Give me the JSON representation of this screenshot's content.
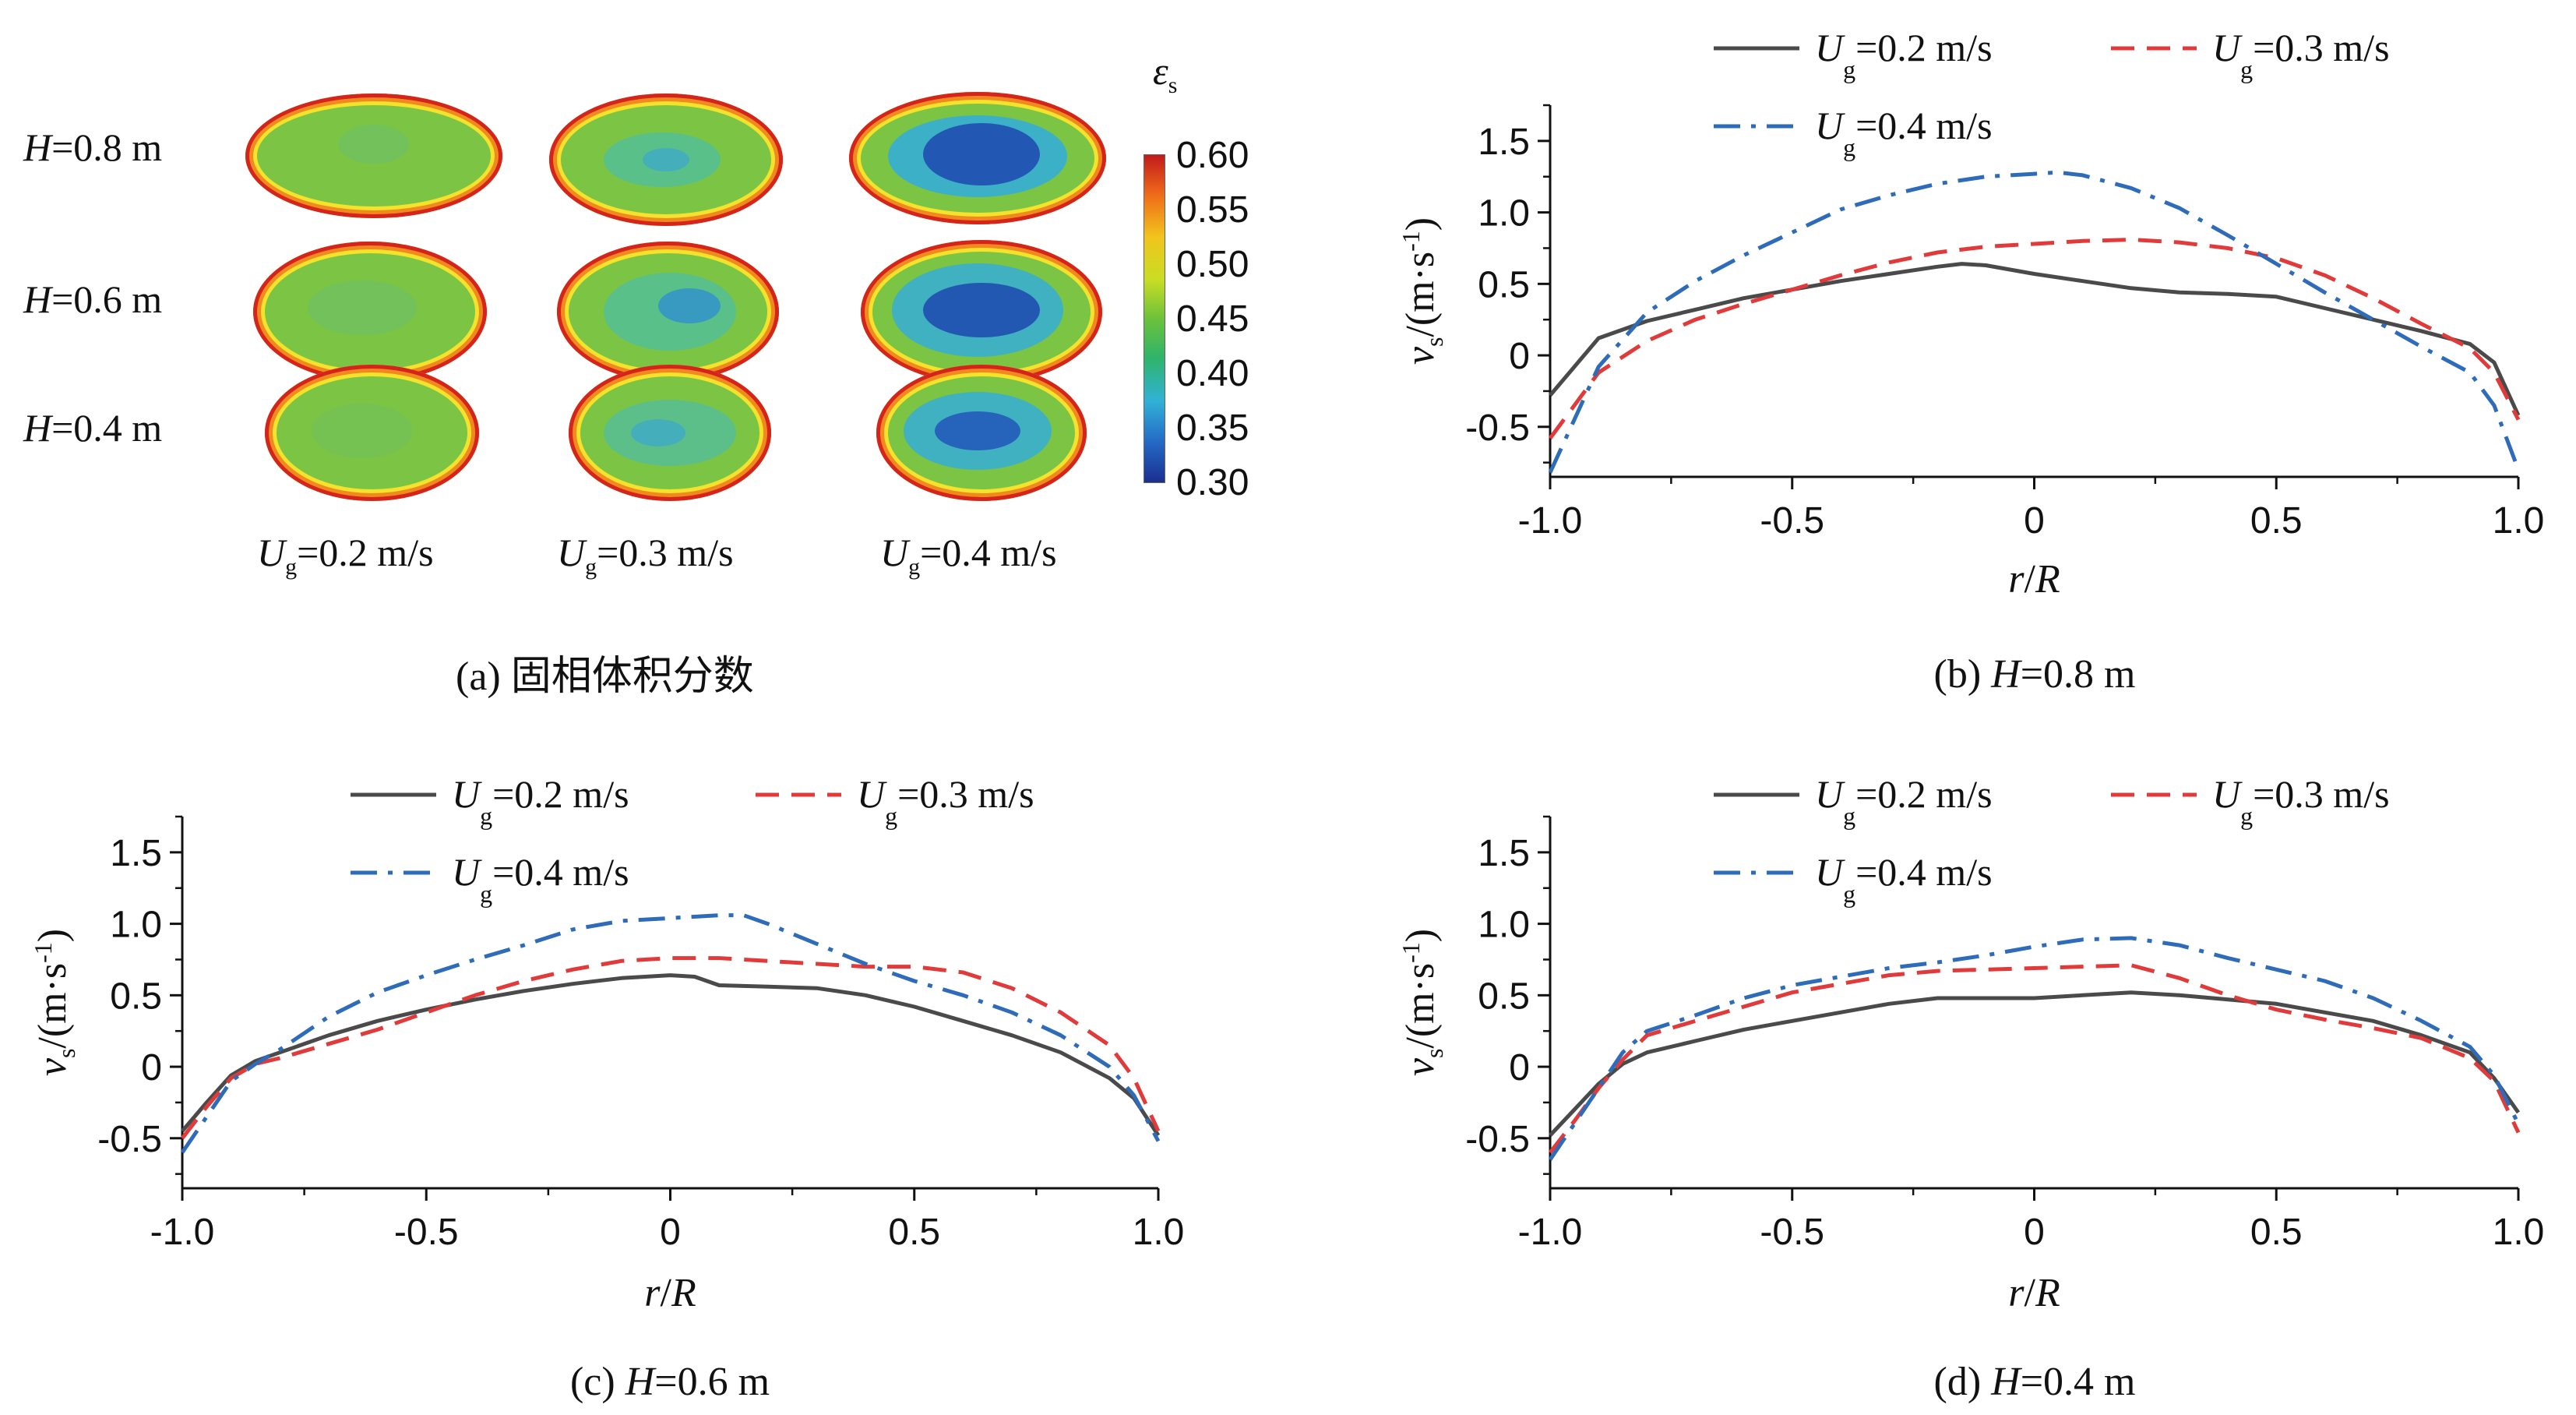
{
  "panel_a": {
    "caption": "(a) 固相体积分数",
    "colorbar_title": "ε",
    "colorbar_sub": "s",
    "colorbar_ticks": [
      "0.60",
      "0.55",
      "0.50",
      "0.45",
      "0.40",
      "0.35",
      "0.30"
    ],
    "row_labels": [
      {
        "var": "H",
        "rest": "=0.8 m"
      },
      {
        "var": "H",
        "rest": "=0.6 m"
      },
      {
        "var": "H",
        "rest": "=0.4 m"
      }
    ],
    "col_labels": [
      {
        "var": "U",
        "sub": "g",
        "rest": "=0.2 m/s"
      },
      {
        "var": "U",
        "sub": "g",
        "rest": "=0.3 m/s"
      },
      {
        "var": "U",
        "sub": "g",
        "rest": "=0.4 m/s"
      }
    ],
    "colors": {
      "bulk": "#7cc443",
      "wall": "#d4241c",
      "low": "#1f4fb0"
    }
  },
  "chart_data": [
    {
      "type": "line",
      "caption_prefix": "(b) ",
      "caption_var": "H",
      "caption_rest": "=0.8 m",
      "xlabel": "r/R",
      "ylabel": "v_s/(m·s^-1)",
      "xlim": [
        -1.0,
        1.0
      ],
      "ylim": [
        -0.85,
        1.75
      ],
      "xticks": [
        "-1.0",
        "-0.5",
        "0",
        "0.5",
        "1.0"
      ],
      "yticks": [
        "-0.5",
        "0",
        "0.5",
        "1.0",
        "1.5"
      ],
      "legend_position": "top",
      "series": [
        {
          "name": "Ug=0.2 m/s",
          "label_var": "U",
          "label_sub": "g",
          "label_rest": "=0.2 m/s",
          "color": "#4a4a4a",
          "dash": "solid",
          "x": [
            -1.0,
            -0.95,
            -0.9,
            -0.8,
            -0.7,
            -0.6,
            -0.5,
            -0.4,
            -0.3,
            -0.2,
            -0.15,
            -0.1,
            0.0,
            0.1,
            0.2,
            0.3,
            0.4,
            0.5,
            0.6,
            0.7,
            0.8,
            0.9,
            0.95,
            1.0
          ],
          "y": [
            -0.28,
            -0.08,
            0.12,
            0.24,
            0.32,
            0.4,
            0.46,
            0.52,
            0.57,
            0.62,
            0.64,
            0.63,
            0.57,
            0.52,
            0.47,
            0.44,
            0.43,
            0.41,
            0.33,
            0.25,
            0.17,
            0.08,
            -0.05,
            -0.42
          ]
        },
        {
          "name": "Ug=0.3 m/s",
          "label_var": "U",
          "label_sub": "g",
          "label_rest": "=0.3 m/s",
          "color": "#e03a3a",
          "dash": "dashed",
          "x": [
            -1.0,
            -0.95,
            -0.9,
            -0.8,
            -0.7,
            -0.6,
            -0.5,
            -0.4,
            -0.3,
            -0.2,
            -0.1,
            0.0,
            0.1,
            0.2,
            0.3,
            0.4,
            0.5,
            0.6,
            0.7,
            0.8,
            0.9,
            0.95,
            1.0
          ],
          "y": [
            -0.58,
            -0.35,
            -0.12,
            0.1,
            0.25,
            0.36,
            0.46,
            0.56,
            0.65,
            0.72,
            0.76,
            0.78,
            0.8,
            0.81,
            0.79,
            0.75,
            0.68,
            0.56,
            0.4,
            0.22,
            0.05,
            -0.12,
            -0.45
          ]
        },
        {
          "name": "Ug=0.4 m/s",
          "label_var": "U",
          "label_sub": "g",
          "label_rest": "=0.4 m/s",
          "color": "#2e6bb8",
          "dash": "dashdot",
          "x": [
            -1.0,
            -0.95,
            -0.9,
            -0.8,
            -0.7,
            -0.6,
            -0.5,
            -0.4,
            -0.3,
            -0.2,
            -0.1,
            0.0,
            0.05,
            0.1,
            0.2,
            0.3,
            0.4,
            0.5,
            0.6,
            0.7,
            0.8,
            0.9,
            0.95,
            1.0
          ],
          "y": [
            -0.82,
            -0.45,
            -0.08,
            0.3,
            0.52,
            0.7,
            0.86,
            1.02,
            1.12,
            1.2,
            1.25,
            1.27,
            1.28,
            1.26,
            1.17,
            1.03,
            0.84,
            0.64,
            0.44,
            0.25,
            0.06,
            -0.12,
            -0.35,
            -0.8
          ]
        }
      ]
    },
    {
      "type": "line",
      "caption_prefix": "(c) ",
      "caption_var": "H",
      "caption_rest": "=0.6 m",
      "xlabel": "r/R",
      "ylabel": "v_s/(m·s^-1)",
      "xlim": [
        -1.0,
        1.0
      ],
      "ylim": [
        -0.85,
        1.75
      ],
      "xticks": [
        "-1.0",
        "-0.5",
        "0",
        "0.5",
        "1.0"
      ],
      "yticks": [
        "-0.5",
        "0",
        "0.5",
        "1.0",
        "1.5"
      ],
      "legend_position": "top",
      "series": [
        {
          "name": "Ug=0.2 m/s",
          "label_var": "U",
          "label_sub": "g",
          "label_rest": "=0.2 m/s",
          "color": "#4a4a4a",
          "dash": "solid",
          "x": [
            -1.0,
            -0.95,
            -0.9,
            -0.85,
            -0.8,
            -0.7,
            -0.6,
            -0.5,
            -0.4,
            -0.3,
            -0.2,
            -0.1,
            0.0,
            0.05,
            0.1,
            0.2,
            0.3,
            0.4,
            0.5,
            0.6,
            0.7,
            0.8,
            0.9,
            0.95,
            1.0
          ],
          "y": [
            -0.45,
            -0.25,
            -0.06,
            0.04,
            0.1,
            0.22,
            0.32,
            0.4,
            0.47,
            0.53,
            0.58,
            0.62,
            0.64,
            0.63,
            0.57,
            0.56,
            0.55,
            0.5,
            0.42,
            0.32,
            0.22,
            0.1,
            -0.08,
            -0.22,
            -0.48
          ]
        },
        {
          "name": "Ug=0.3 m/s",
          "label_var": "U",
          "label_sub": "g",
          "label_rest": "=0.3 m/s",
          "color": "#e03a3a",
          "dash": "dashed",
          "x": [
            -1.0,
            -0.95,
            -0.9,
            -0.85,
            -0.8,
            -0.7,
            -0.6,
            -0.5,
            -0.4,
            -0.3,
            -0.2,
            -0.1,
            0.0,
            0.1,
            0.2,
            0.3,
            0.4,
            0.5,
            0.6,
            0.7,
            0.8,
            0.9,
            0.95,
            1.0
          ],
          "y": [
            -0.5,
            -0.28,
            -0.08,
            0.02,
            0.06,
            0.16,
            0.26,
            0.38,
            0.5,
            0.6,
            0.68,
            0.74,
            0.76,
            0.76,
            0.74,
            0.72,
            0.7,
            0.7,
            0.66,
            0.55,
            0.38,
            0.15,
            -0.08,
            -0.45
          ]
        },
        {
          "name": "Ug=0.4 m/s",
          "label_var": "U",
          "label_sub": "g",
          "label_rest": "=0.4 m/s",
          "color": "#2e6bb8",
          "dash": "dashdot",
          "x": [
            -1.0,
            -0.95,
            -0.9,
            -0.85,
            -0.8,
            -0.7,
            -0.6,
            -0.5,
            -0.4,
            -0.3,
            -0.2,
            -0.1,
            0.0,
            0.1,
            0.15,
            0.2,
            0.3,
            0.4,
            0.5,
            0.6,
            0.7,
            0.8,
            0.9,
            0.95,
            1.0
          ],
          "y": [
            -0.6,
            -0.35,
            -0.1,
            0.02,
            0.12,
            0.35,
            0.52,
            0.64,
            0.75,
            0.85,
            0.96,
            1.02,
            1.04,
            1.06,
            1.06,
            1.0,
            0.86,
            0.72,
            0.6,
            0.5,
            0.38,
            0.22,
            0.0,
            -0.2,
            -0.52
          ]
        }
      ]
    },
    {
      "type": "line",
      "caption_prefix": "(d) ",
      "caption_var": "H",
      "caption_rest": "=0.4 m",
      "xlabel": "r/R",
      "ylabel": "v_s/(m·s^-1)",
      "xlim": [
        -1.0,
        1.0
      ],
      "ylim": [
        -0.85,
        1.75
      ],
      "xticks": [
        "-1.0",
        "-0.5",
        "0",
        "0.5",
        "1.0"
      ],
      "yticks": [
        "-0.5",
        "0",
        "0.5",
        "1.0",
        "1.5"
      ],
      "legend_position": "top",
      "series": [
        {
          "name": "Ug=0.2 m/s",
          "label_var": "U",
          "label_sub": "g",
          "label_rest": "=0.2 m/s",
          "color": "#4a4a4a",
          "dash": "solid",
          "x": [
            -1.0,
            -0.95,
            -0.9,
            -0.85,
            -0.8,
            -0.7,
            -0.6,
            -0.5,
            -0.4,
            -0.3,
            -0.2,
            -0.1,
            0.0,
            0.1,
            0.2,
            0.3,
            0.4,
            0.5,
            0.6,
            0.7,
            0.8,
            0.9,
            0.95,
            1.0
          ],
          "y": [
            -0.48,
            -0.3,
            -0.12,
            0.02,
            0.1,
            0.18,
            0.26,
            0.32,
            0.38,
            0.44,
            0.48,
            0.48,
            0.48,
            0.5,
            0.52,
            0.5,
            0.47,
            0.44,
            0.38,
            0.32,
            0.22,
            0.1,
            -0.08,
            -0.32
          ]
        },
        {
          "name": "Ug=0.3 m/s",
          "label_var": "U",
          "label_sub": "g",
          "label_rest": "=0.3 m/s",
          "color": "#e03a3a",
          "dash": "dashed",
          "x": [
            -1.0,
            -0.95,
            -0.9,
            -0.85,
            -0.8,
            -0.7,
            -0.6,
            -0.5,
            -0.4,
            -0.3,
            -0.2,
            -0.1,
            0.0,
            0.1,
            0.2,
            0.3,
            0.4,
            0.5,
            0.6,
            0.7,
            0.8,
            0.9,
            0.95,
            1.0
          ],
          "y": [
            -0.6,
            -0.38,
            -0.15,
            0.05,
            0.22,
            0.32,
            0.42,
            0.52,
            0.58,
            0.64,
            0.67,
            0.68,
            0.69,
            0.7,
            0.71,
            0.62,
            0.5,
            0.4,
            0.33,
            0.27,
            0.2,
            0.06,
            -0.1,
            -0.46
          ]
        },
        {
          "name": "Ug=0.4 m/s",
          "label_var": "U",
          "label_sub": "g",
          "label_rest": "=0.4 m/s",
          "color": "#2e6bb8",
          "dash": "dashdot",
          "x": [
            -1.0,
            -0.95,
            -0.9,
            -0.85,
            -0.8,
            -0.7,
            -0.6,
            -0.5,
            -0.4,
            -0.3,
            -0.2,
            -0.1,
            0.0,
            0.1,
            0.2,
            0.3,
            0.4,
            0.5,
            0.6,
            0.7,
            0.8,
            0.9,
            0.95,
            1.0
          ],
          "y": [
            -0.65,
            -0.4,
            -0.15,
            0.1,
            0.25,
            0.36,
            0.48,
            0.57,
            0.63,
            0.69,
            0.73,
            0.78,
            0.84,
            0.89,
            0.9,
            0.85,
            0.76,
            0.68,
            0.6,
            0.48,
            0.32,
            0.14,
            -0.06,
            -0.4
          ]
        }
      ]
    }
  ]
}
